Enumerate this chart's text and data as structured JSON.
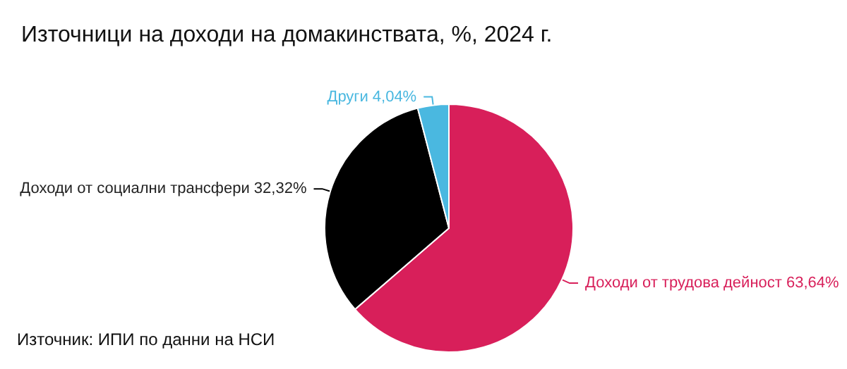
{
  "chart_data": {
    "type": "pie",
    "title": "Източници на доходи на домакинствата, %, 2024 г.",
    "categories": [
      "Доходи от трудова дейност",
      "Доходи от социални трансфери",
      "Други"
    ],
    "values": [
      63.64,
      32.32,
      4.04
    ],
    "value_labels": [
      "63,64%",
      "32,32%",
      "4,04%"
    ],
    "colors": [
      "#d81f5a",
      "#000000",
      "#4ab8e0"
    ],
    "annotations": [
      "Източник: ИПИ по данни на НСИ"
    ],
    "legend": false
  }
}
